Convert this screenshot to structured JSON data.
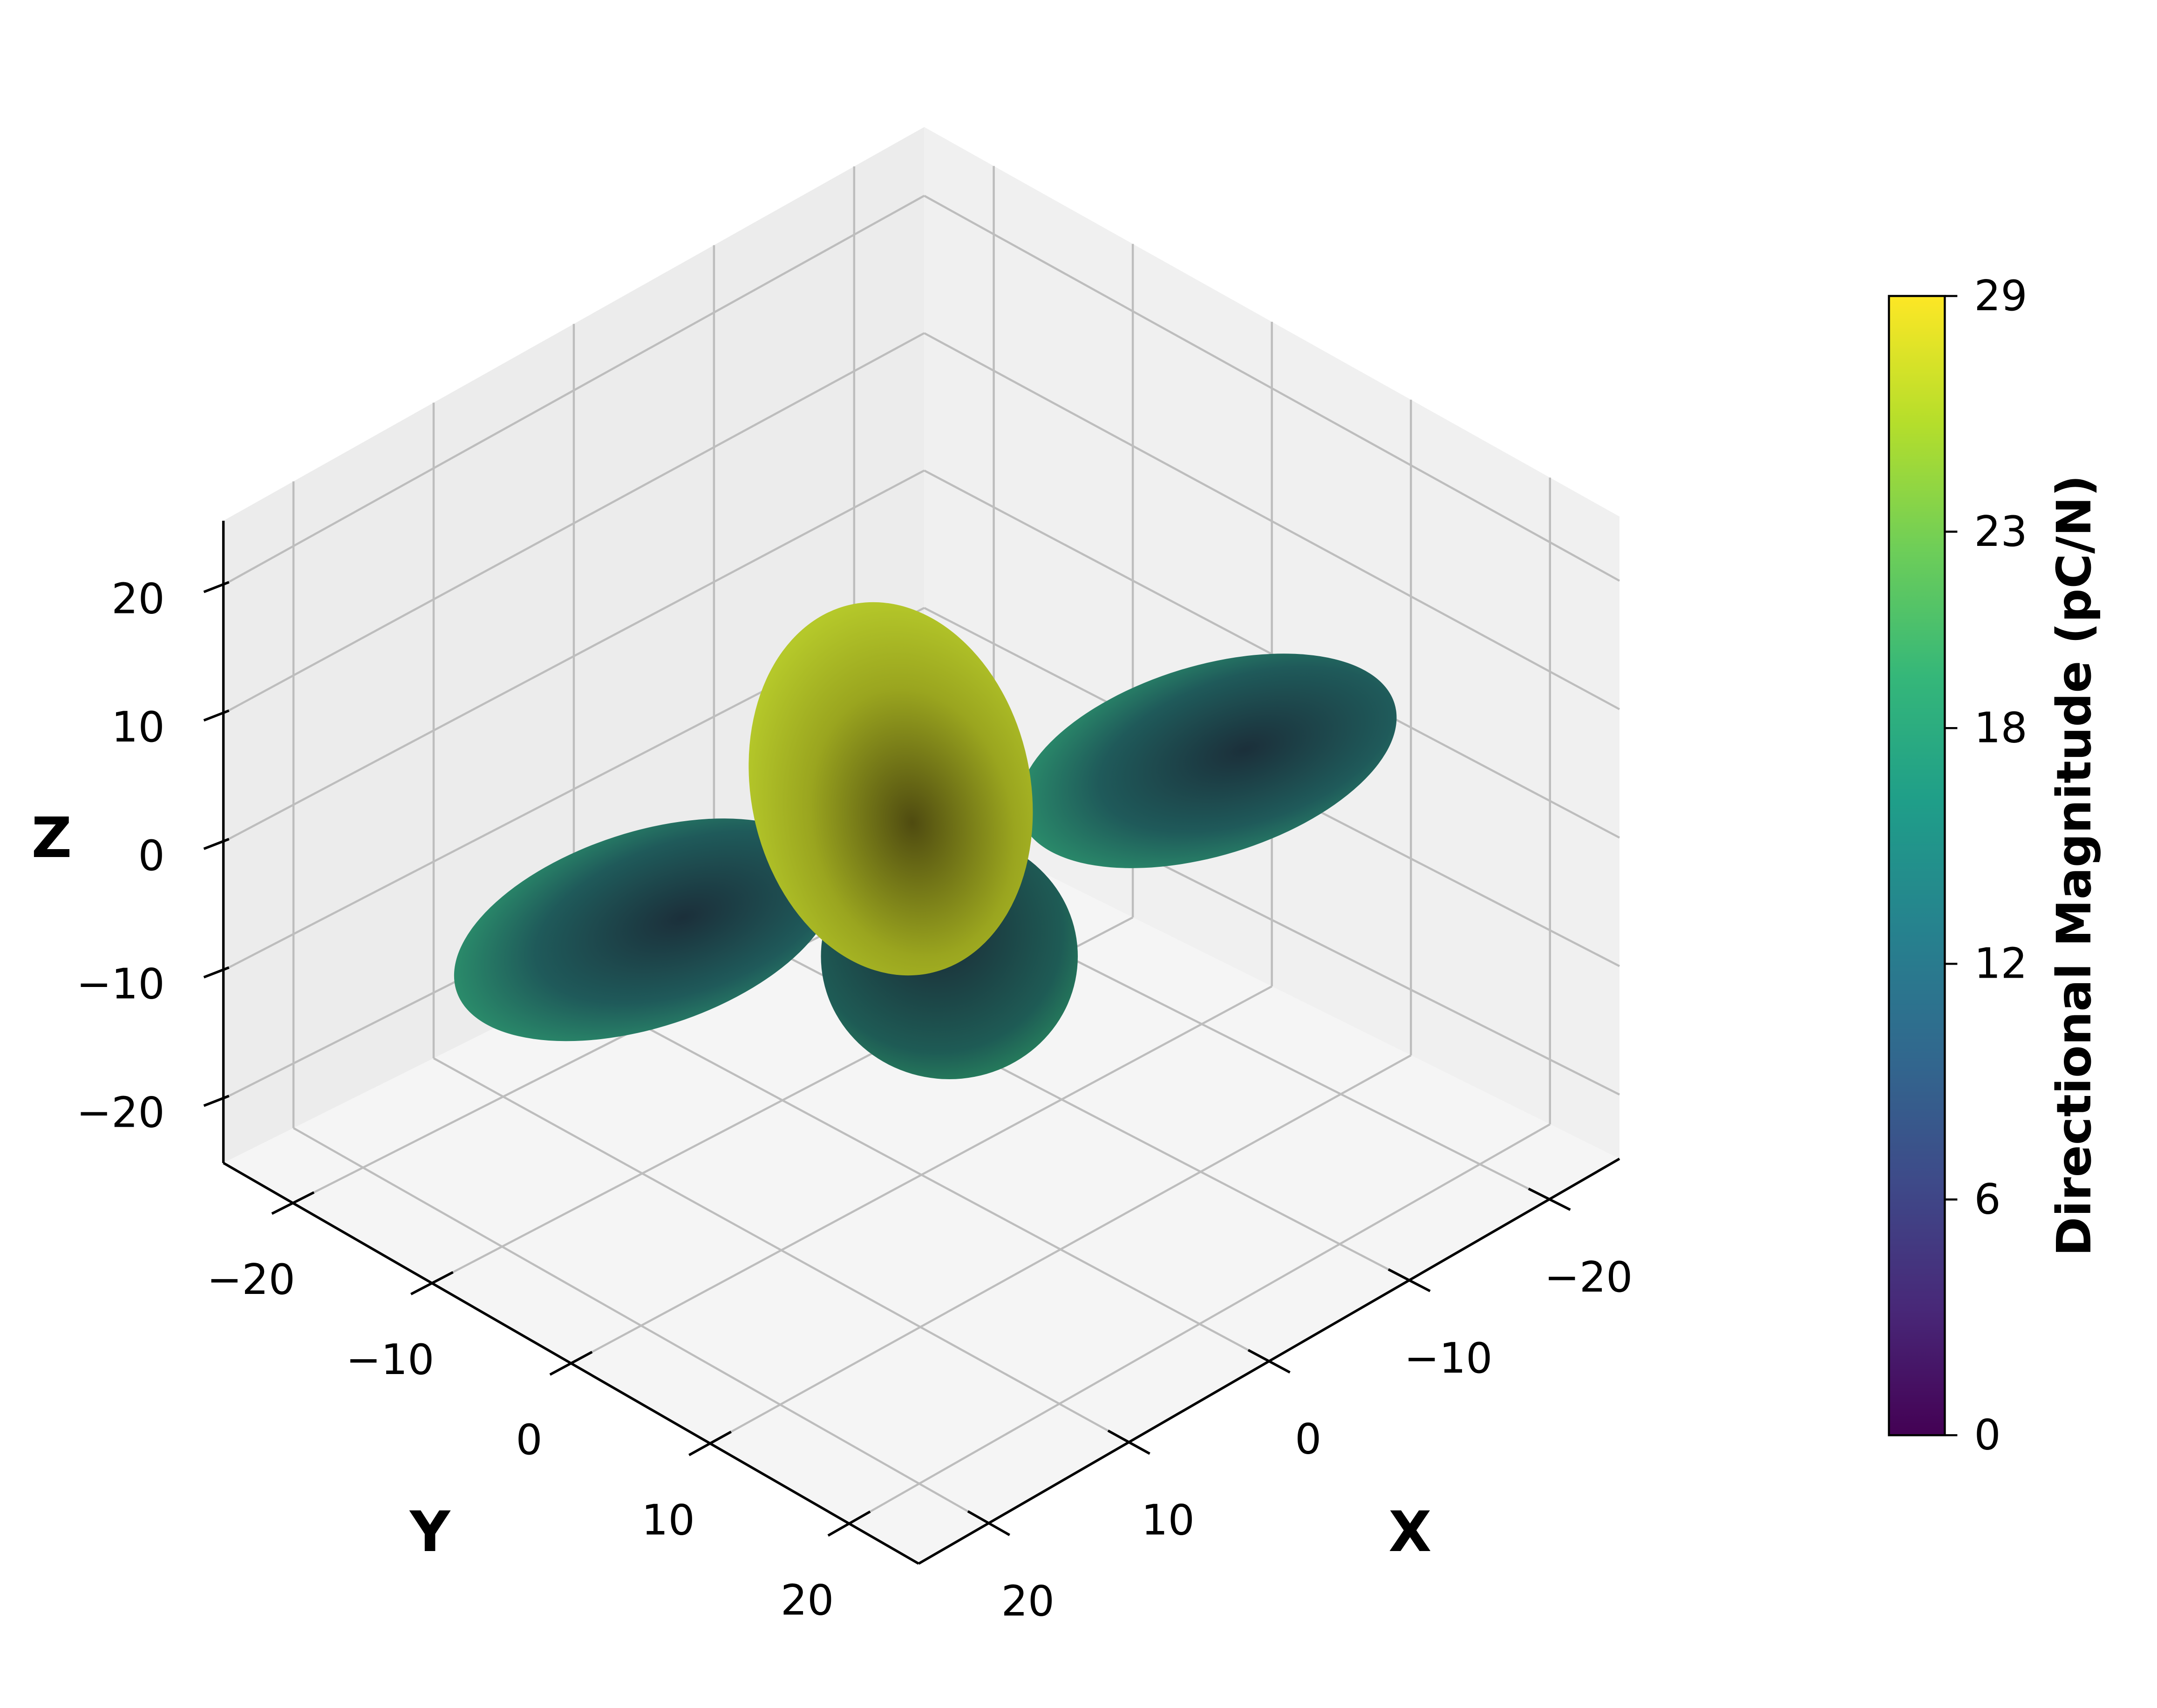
{
  "chart_data": {
    "type": "surface3d",
    "xlabel": "X",
    "ylabel": "Y",
    "zlabel": "Z",
    "xlim": [
      -25,
      25
    ],
    "ylim": [
      -25,
      25
    ],
    "zlim": [
      -25,
      25
    ],
    "xticks": [
      {
        "value": -20,
        "label": "−20"
      },
      {
        "value": -10,
        "label": "−10"
      },
      0,
      10,
      20
    ],
    "yticks": [
      {
        "value": -20,
        "label": "−20"
      },
      {
        "value": -10,
        "label": "−10"
      },
      0,
      10,
      20
    ],
    "zticks": [
      {
        "value": -20,
        "label": "−20"
      },
      {
        "value": -10,
        "label": "−10"
      },
      0,
      10,
      20
    ],
    "grid": true,
    "colorbar": {
      "label": "Directional Magnitude (pC/N)",
      "colormap": "viridis",
      "lim": [
        0,
        29
      ],
      "ticks": [
        0,
        6,
        12,
        18,
        23,
        29
      ]
    }
  }
}
